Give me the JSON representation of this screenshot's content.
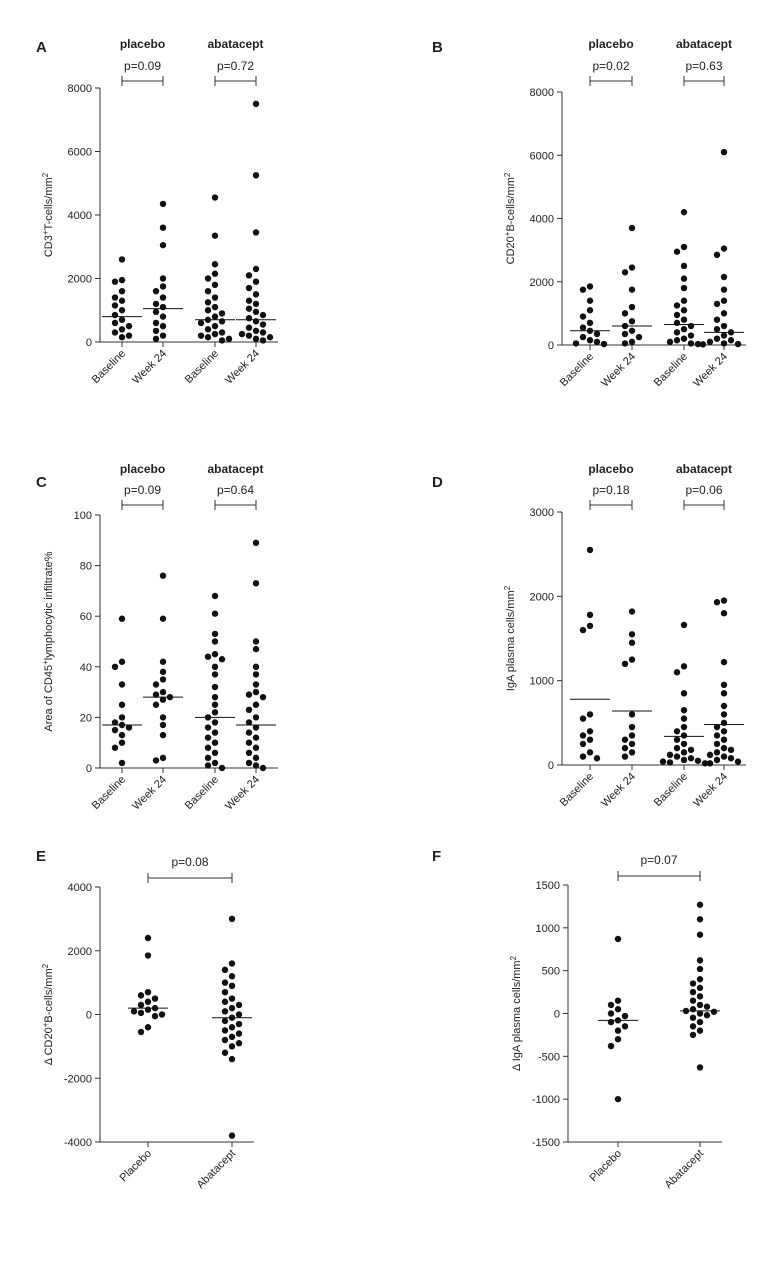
{
  "chart_data": [
    {
      "panel": "A",
      "type": "scatter",
      "ylabel": "CD3⁺T-cells/mm²",
      "ylim": [
        0,
        8000
      ],
      "yticks": [
        "0",
        "2000",
        "4000",
        "6000",
        "8000"
      ],
      "ytick_values": [
        0,
        2000,
        4000,
        6000,
        8000
      ],
      "categories": [
        "Baseline",
        "Week 24",
        "Baseline",
        "Week 24"
      ],
      "groups": [
        {
          "label": "placebo",
          "p_value": "p=0.09",
          "cats": [
            0,
            1
          ]
        },
        {
          "label": "abatacept",
          "p_value": "p=0.72",
          "cats": [
            2,
            3
          ]
        }
      ],
      "series": [
        {
          "name": "placebo Baseline",
          "median": 800,
          "values": [
            2600,
            1950,
            1900,
            1600,
            1400,
            1300,
            1150,
            1000,
            850,
            700,
            600,
            500,
            400,
            300,
            200,
            150
          ]
        },
        {
          "name": "placebo Week 24",
          "median": 1050,
          "values": [
            4350,
            3600,
            3050,
            2000,
            1750,
            1600,
            1400,
            1200,
            1100,
            950,
            800,
            600,
            500,
            350,
            200,
            100
          ]
        },
        {
          "name": "abatacept Baseline",
          "median": 700,
          "values": [
            4550,
            3350,
            2450,
            2150,
            2000,
            1800,
            1600,
            1400,
            1250,
            1100,
            1000,
            900,
            800,
            700,
            650,
            600,
            500,
            400,
            300,
            250,
            200,
            150,
            100,
            50
          ]
        },
        {
          "name": "abatacept Week 24",
          "median": 700,
          "values": [
            7500,
            5250,
            3450,
            2300,
            2100,
            1900,
            1700,
            1500,
            1300,
            1200,
            1050,
            950,
            850,
            750,
            650,
            550,
            450,
            350,
            300,
            250,
            200,
            150,
            100,
            50
          ]
        }
      ]
    },
    {
      "panel": "B",
      "type": "scatter",
      "ylabel": "CD20⁺B-cells/mm²",
      "ylim": [
        0,
        8000
      ],
      "yticks": [
        "0",
        "2000",
        "4000",
        "6000",
        "8000"
      ],
      "ytick_values": [
        0,
        2000,
        4000,
        6000,
        8000
      ],
      "categories": [
        "Baseline",
        "Week 24",
        "Baseline",
        "Week 24"
      ],
      "groups": [
        {
          "label": "placebo",
          "p_value": "p=0.02",
          "cats": [
            0,
            1
          ]
        },
        {
          "label": "abatacept",
          "p_value": "p=0.63",
          "cats": [
            2,
            3
          ]
        }
      ],
      "series": [
        {
          "name": "placebo Baseline",
          "median": 450,
          "values": [
            1850,
            1750,
            1400,
            1100,
            900,
            700,
            550,
            450,
            350,
            250,
            150,
            100,
            50,
            30
          ]
        },
        {
          "name": "placebo Week 24",
          "median": 600,
          "values": [
            3700,
            2450,
            2300,
            1750,
            1200,
            1000,
            750,
            600,
            450,
            350,
            250,
            100,
            50
          ]
        },
        {
          "name": "abatacept Baseline",
          "median": 650,
          "values": [
            4200,
            3100,
            2950,
            2500,
            2100,
            1800,
            1400,
            1250,
            1100,
            950,
            800,
            700,
            600,
            500,
            400,
            300,
            200,
            150,
            100,
            50,
            30
          ]
        },
        {
          "name": "abatacept Week 24",
          "median": 400,
          "values": [
            6100,
            3050,
            2850,
            2150,
            1750,
            1400,
            1300,
            1000,
            800,
            600,
            500,
            400,
            300,
            200,
            150,
            100,
            50,
            30,
            20
          ]
        }
      ]
    },
    {
      "panel": "C",
      "type": "scatter",
      "ylabel": "Area of CD45⁺lymphocytic infiltrate%",
      "ylim": [
        0,
        100
      ],
      "yticks": [
        "0",
        "20",
        "40",
        "60",
        "80",
        "100"
      ],
      "ytick_values": [
        0,
        20,
        40,
        60,
        80,
        100
      ],
      "categories": [
        "Baseline",
        "Week 24",
        "Baseline",
        "Week 24"
      ],
      "groups": [
        {
          "label": "placebo",
          "p_value": "p=0.09",
          "cats": [
            0,
            1
          ]
        },
        {
          "label": "abatacept",
          "p_value": "p=0.64",
          "cats": [
            2,
            3
          ]
        }
      ],
      "series": [
        {
          "name": "placebo Baseline",
          "median": 17,
          "values": [
            59,
            42,
            40,
            33,
            25,
            20,
            18,
            17,
            16,
            15,
            13,
            10,
            8,
            2
          ]
        },
        {
          "name": "placebo Week 24",
          "median": 28,
          "values": [
            76,
            59,
            42,
            38,
            35,
            33,
            30,
            29,
            28,
            27,
            25,
            20,
            17,
            13,
            4,
            3
          ]
        },
        {
          "name": "abatacept Baseline",
          "median": 20,
          "values": [
            68,
            61,
            53,
            50,
            45,
            44,
            43,
            40,
            37,
            32,
            28,
            25,
            22,
            20,
            18,
            16,
            14,
            12,
            10,
            8,
            6,
            4,
            2,
            1,
            0
          ]
        },
        {
          "name": "abatacept Week 24",
          "median": 17,
          "values": [
            89,
            73,
            50,
            47,
            40,
            37,
            33,
            30,
            29,
            28,
            25,
            23,
            20,
            18,
            16,
            14,
            12,
            10,
            8,
            6,
            4,
            2,
            1,
            0
          ]
        }
      ]
    },
    {
      "panel": "D",
      "type": "scatter",
      "ylabel": "IgA plasma cells/mm²",
      "ylim": [
        0,
        3000
      ],
      "yticks": [
        "0",
        "1000",
        "2000",
        "3000"
      ],
      "ytick_values": [
        0,
        1000,
        2000,
        3000
      ],
      "categories": [
        "Baseline",
        "Week 24",
        "Baseline",
        "Week 24"
      ],
      "groups": [
        {
          "label": "placebo",
          "p_value": "p=0.18",
          "cats": [
            0,
            1
          ]
        },
        {
          "label": "abatacept",
          "p_value": "p=0.06",
          "cats": [
            2,
            3
          ]
        }
      ],
      "series": [
        {
          "name": "placebo Baseline",
          "median": 780,
          "values": [
            2550,
            1780,
            1650,
            1600,
            600,
            550,
            400,
            350,
            300,
            250,
            150,
            100,
            80
          ]
        },
        {
          "name": "placebo Week 24",
          "median": 640,
          "values": [
            1820,
            1550,
            1450,
            1250,
            1200,
            600,
            450,
            350,
            300,
            250,
            200,
            150,
            100
          ]
        },
        {
          "name": "abatacept Baseline",
          "median": 340,
          "values": [
            1660,
            1170,
            1100,
            850,
            650,
            550,
            450,
            400,
            350,
            300,
            250,
            200,
            180,
            150,
            120,
            100,
            80,
            60,
            50,
            40,
            30,
            20
          ]
        },
        {
          "name": "abatacept Week 24",
          "median": 480,
          "values": [
            1950,
            1930,
            1800,
            1220,
            950,
            850,
            700,
            600,
            500,
            450,
            400,
            350,
            300,
            250,
            200,
            180,
            150,
            120,
            100,
            80,
            60,
            40,
            20
          ]
        }
      ]
    },
    {
      "panel": "E",
      "type": "scatter",
      "ylabel": "Δ CD20⁺B-cells/mm²",
      "ylim": [
        -4000,
        4000
      ],
      "yticks": [
        "-4000",
        "-2000",
        "0",
        "2000",
        "4000"
      ],
      "ytick_values": [
        -4000,
        -2000,
        0,
        2000,
        4000
      ],
      "categories": [
        "Placebo",
        "Abatacept"
      ],
      "groups": [
        {
          "label": "",
          "p_value": "p=0.08",
          "cats": [
            0,
            1
          ]
        }
      ],
      "series": [
        {
          "name": "Placebo",
          "median": 200,
          "values": [
            2400,
            1850,
            700,
            600,
            500,
            400,
            300,
            200,
            150,
            100,
            50,
            0,
            -50,
            -400,
            -550
          ]
        },
        {
          "name": "Abatacept",
          "median": -100,
          "values": [
            3000,
            1600,
            1400,
            1200,
            1000,
            900,
            700,
            500,
            400,
            300,
            200,
            100,
            0,
            -100,
            -200,
            -300,
            -400,
            -500,
            -600,
            -700,
            -800,
            -900,
            -1000,
            -1200,
            -1400,
            -3800
          ]
        }
      ]
    },
    {
      "panel": "F",
      "type": "scatter",
      "ylabel": "Δ IgA plasma cells/mm²",
      "ylim": [
        -1500,
        1500
      ],
      "yticks": [
        "-1500",
        "-1000",
        "-500",
        "0",
        "500",
        "1000",
        "1500"
      ],
      "ytick_values": [
        -1500,
        -1000,
        -500,
        0,
        500,
        1000,
        1500
      ],
      "categories": [
        "Placebo",
        "Abatacept"
      ],
      "groups": [
        {
          "label": "",
          "p_value": "p=0.07",
          "cats": [
            0,
            1
          ]
        }
      ],
      "series": [
        {
          "name": "Placebo",
          "median": -80,
          "values": [
            870,
            150,
            100,
            50,
            0,
            -30,
            -80,
            -100,
            -150,
            -200,
            -300,
            -380,
            -1000
          ]
        },
        {
          "name": "Abatacept",
          "median": 30,
          "values": [
            1270,
            1100,
            920,
            620,
            520,
            400,
            350,
            300,
            250,
            200,
            150,
            100,
            80,
            50,
            30,
            20,
            0,
            -20,
            -50,
            -100,
            -150,
            -200,
            -250,
            -630
          ]
        }
      ]
    }
  ]
}
